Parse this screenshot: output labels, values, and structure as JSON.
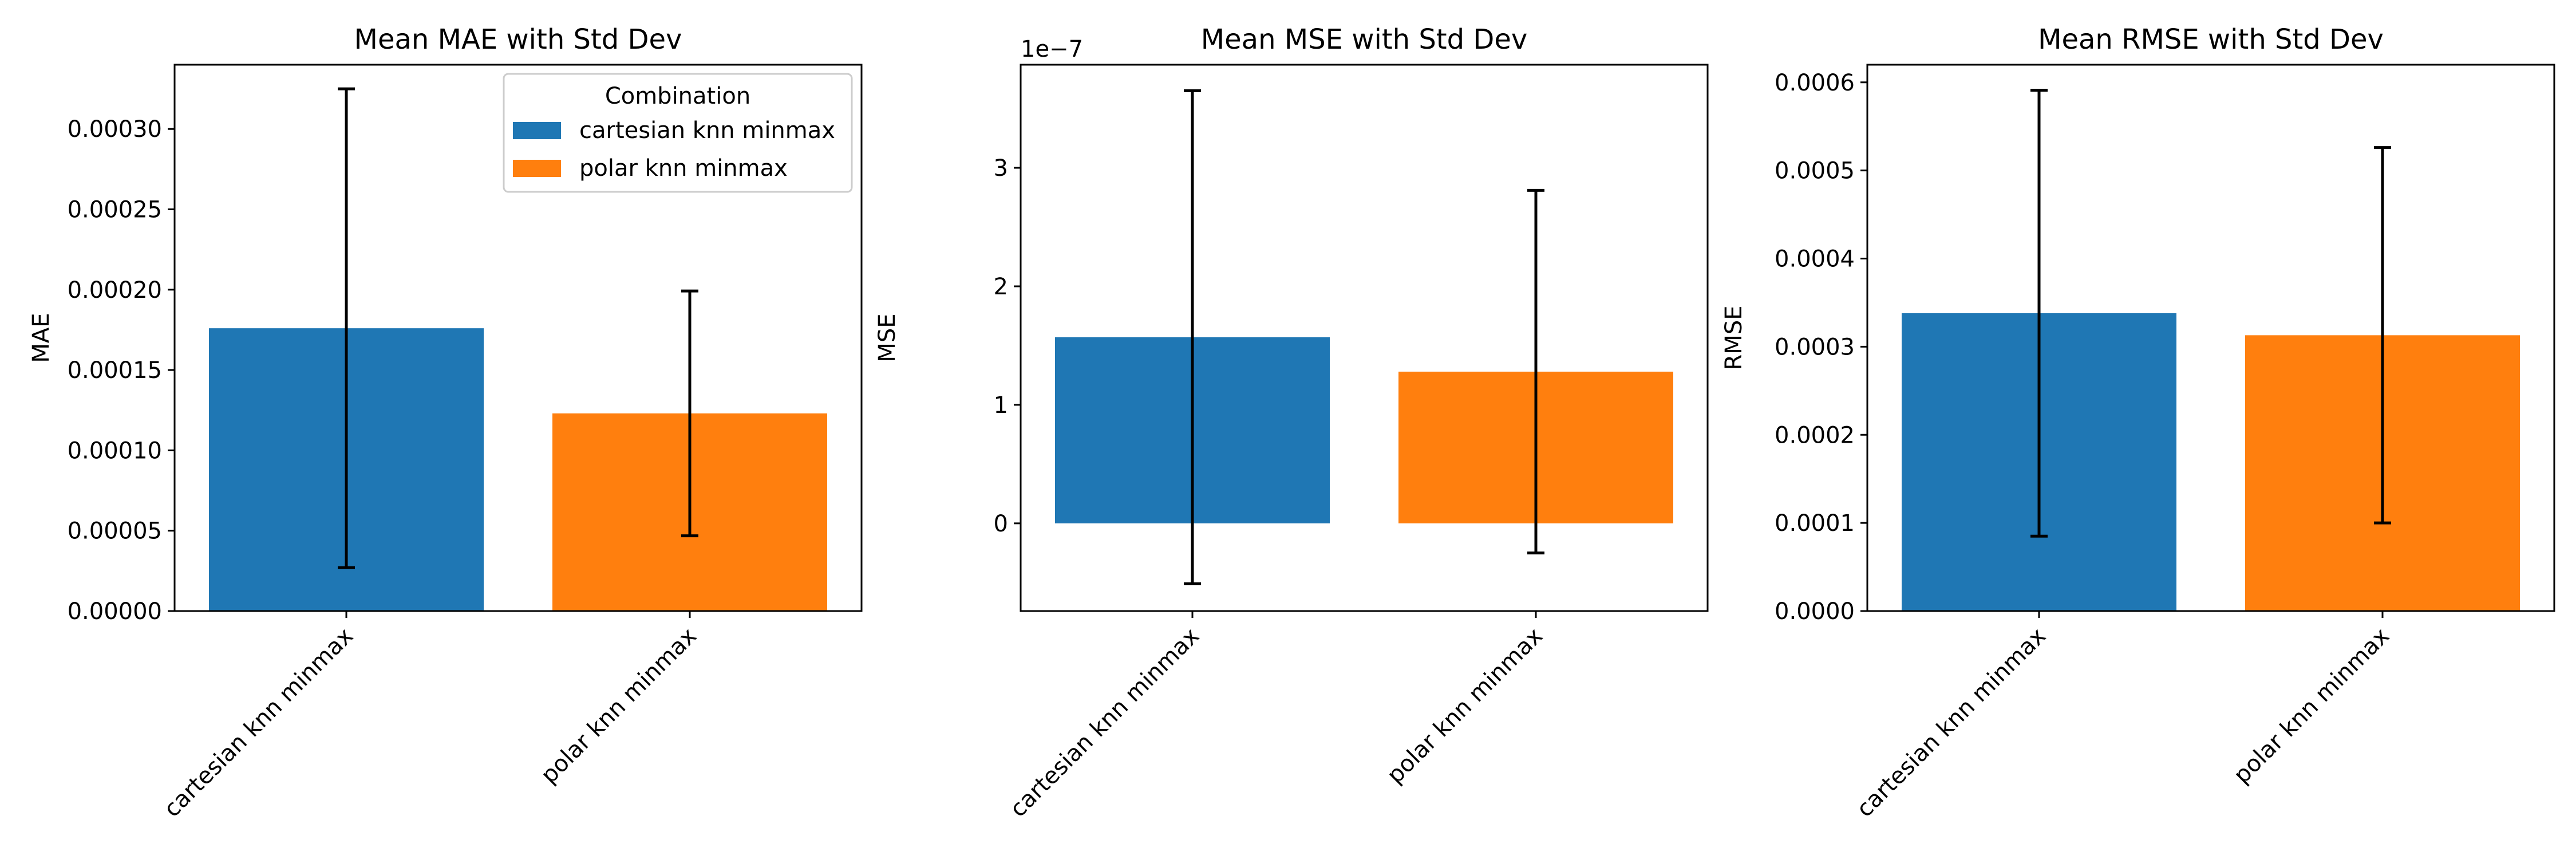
{
  "chart_data": [
    {
      "type": "bar",
      "title": "Mean MAE with Std Dev",
      "xlabel": "",
      "ylabel": "MAE",
      "categories": [
        "cartesian knn minmax",
        "polar knn minmax"
      ],
      "values": [
        0.000176,
        0.000123
      ],
      "error": [
        0.000149,
        7.62e-05
      ],
      "colors": [
        "#1f77b4",
        "#ff7f0e"
      ],
      "ylim": [
        0,
        0.00034
      ],
      "yticks": [
        0,
        5e-05,
        0.0001,
        0.00015,
        0.0002,
        0.00025,
        0.0003
      ],
      "ytick_labels": [
        "0.00000",
        "0.00005",
        "0.00010",
        "0.00015",
        "0.00020",
        "0.00025",
        "0.00030"
      ],
      "offset_label": "",
      "grid": false,
      "legend": {
        "title": "Combination",
        "placement": "upper right",
        "entries": [
          "cartesian knn minmax",
          "polar knn minmax"
        ]
      }
    },
    {
      "type": "bar",
      "title": "Mean MSE with Std Dev",
      "xlabel": "",
      "ylabel": "MSE",
      "categories": [
        "cartesian knn minmax",
        "polar knn minmax"
      ],
      "values": [
        1.57e-07,
        1.28e-07
      ],
      "error": [
        2.08e-07,
        1.53e-07
      ],
      "colors": [
        "#1f77b4",
        "#ff7f0e"
      ],
      "ylim": [
        -7.4e-08,
        3.87e-07
      ],
      "yticks": [
        0,
        1e-07,
        2e-07,
        3e-07
      ],
      "ytick_labels": [
        "0",
        "1",
        "2",
        "3"
      ],
      "offset_label": "1e−7",
      "grid": false,
      "legend": null
    },
    {
      "type": "bar",
      "title": "Mean RMSE with Std Dev",
      "xlabel": "",
      "ylabel": "RMSE",
      "categories": [
        "cartesian knn minmax",
        "polar knn minmax"
      ],
      "values": [
        0.000338,
        0.000313
      ],
      "error": [
        0.000253,
        0.000213
      ],
      "colors": [
        "#1f77b4",
        "#ff7f0e"
      ],
      "ylim": [
        0,
        0.00062
      ],
      "yticks": [
        0,
        0.0001,
        0.0002,
        0.0003,
        0.0004,
        0.0005,
        0.0006
      ],
      "ytick_labels": [
        "0.0000",
        "0.0001",
        "0.0002",
        "0.0003",
        "0.0004",
        "0.0005",
        "0.0006"
      ],
      "offset_label": "",
      "grid": false,
      "legend": null
    }
  ]
}
